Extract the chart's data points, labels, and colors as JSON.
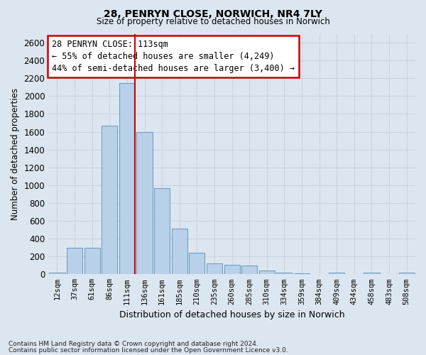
{
  "title_line1": "28, PENRYN CLOSE, NORWICH, NR4 7LY",
  "title_line2": "Size of property relative to detached houses in Norwich",
  "xlabel": "Distribution of detached houses by size in Norwich",
  "ylabel": "Number of detached properties",
  "categories": [
    "12sqm",
    "37sqm",
    "61sqm",
    "86sqm",
    "111sqm",
    "136sqm",
    "161sqm",
    "185sqm",
    "210sqm",
    "235sqm",
    "260sqm",
    "285sqm",
    "310sqm",
    "334sqm",
    "359sqm",
    "384sqm",
    "409sqm",
    "434sqm",
    "458sqm",
    "483sqm",
    "508sqm"
  ],
  "values": [
    20,
    300,
    300,
    1670,
    2150,
    1600,
    970,
    510,
    245,
    120,
    110,
    95,
    40,
    15,
    10,
    5,
    20,
    5,
    20,
    5,
    20
  ],
  "bar_color": "#b8d0e8",
  "bar_edge_color": "#6699bb",
  "highlight_index": 4,
  "highlight_line_color": "#cc0000",
  "annotation_text": "28 PENRYN CLOSE: 113sqm\n← 55% of detached houses are smaller (4,249)\n44% of semi-detached houses are larger (3,400) →",
  "annotation_box_color": "#ffffff",
  "annotation_box_edge_color": "#cc0000",
  "ylim": [
    0,
    2700
  ],
  "yticks": [
    0,
    200,
    400,
    600,
    800,
    1000,
    1200,
    1400,
    1600,
    1800,
    2000,
    2200,
    2400,
    2600
  ],
  "grid_color": "#c8d4e0",
  "background_color": "#dce6f0",
  "footer_line1": "Contains HM Land Registry data © Crown copyright and database right 2024.",
  "footer_line2": "Contains public sector information licensed under the Open Government Licence v3.0."
}
